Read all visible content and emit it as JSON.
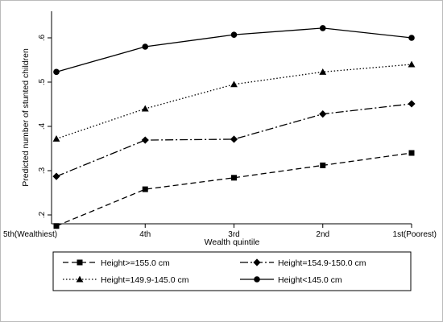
{
  "chart_data": {
    "type": "line",
    "xlabel": "Wealth quintile",
    "ylabel": "Predicted number of stunted children",
    "categories": [
      "5th(Wealthiest)",
      "4th",
      "3rd",
      "2nd",
      "1st(Poorest)"
    ],
    "ylim": [
      0.18,
      0.66
    ],
    "yticks": [
      0.2,
      0.3,
      0.4,
      0.5,
      0.6
    ],
    "ytick_labels": [
      ".2",
      ".3",
      ".4",
      ".5",
      ".6"
    ],
    "grid": false,
    "legend_position": "bottom",
    "series": [
      {
        "name": "Height>=155.0 cm",
        "marker": "square",
        "dash": "dashed",
        "values": [
          0.175,
          0.258,
          0.284,
          0.312,
          0.34
        ]
      },
      {
        "name": "Height=154.9-150.0 cm",
        "marker": "diamond",
        "dash": "dashdot",
        "values": [
          0.287,
          0.369,
          0.371,
          0.428,
          0.451
        ]
      },
      {
        "name": "Height=149.9-145.0 cm",
        "marker": "triangle",
        "dash": "dotted",
        "values": [
          0.372,
          0.44,
          0.495,
          0.523,
          0.54
        ]
      },
      {
        "name": "Height<145.0 cm",
        "marker": "circle",
        "dash": "solid",
        "values": [
          0.523,
          0.58,
          0.607,
          0.622,
          0.6
        ]
      }
    ]
  }
}
